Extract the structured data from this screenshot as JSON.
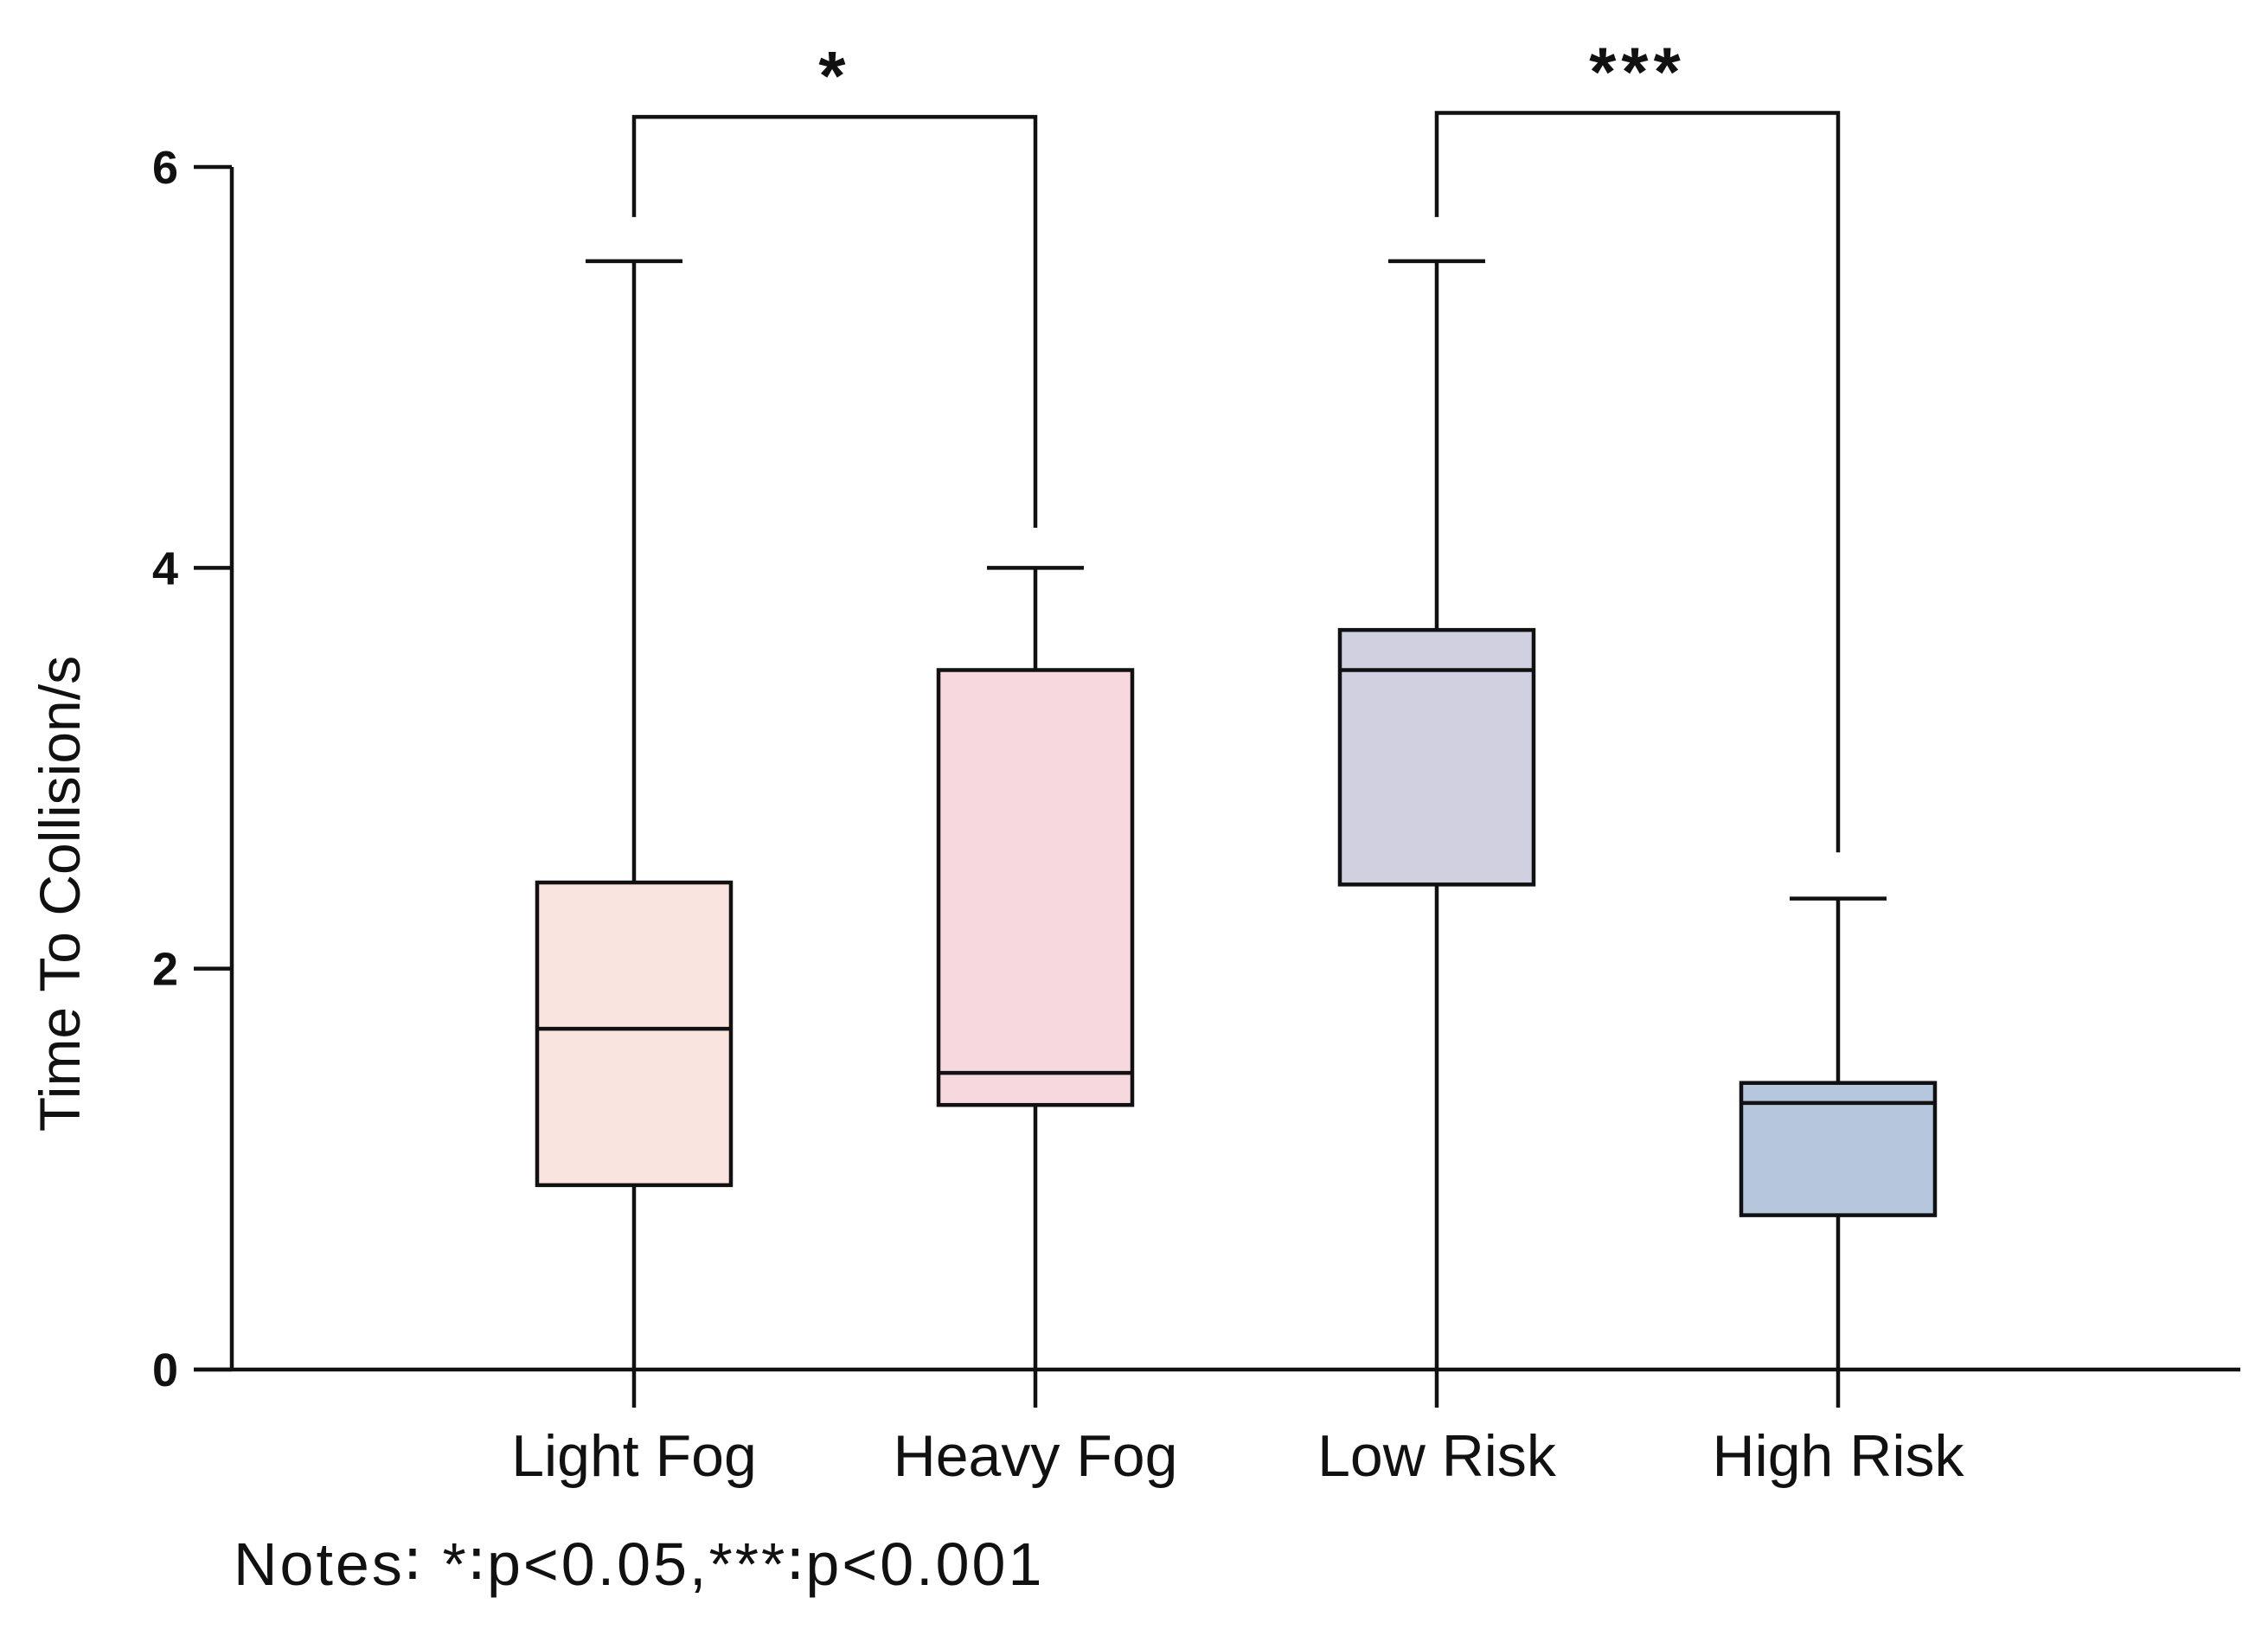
{
  "chart_data": {
    "type": "box",
    "title": "",
    "xlabel": "",
    "ylabel": "Time To Collision/s",
    "ylim": [
      0,
      6
    ],
    "yticks": [
      0,
      2,
      4,
      6
    ],
    "grid": false,
    "categories": [
      "Light Fog",
      "Heavy Fog",
      "Low Risk",
      "High Risk"
    ],
    "boxes": [
      {
        "name": "Light Fog",
        "min": 0,
        "q1": 0.92,
        "median": 1.7,
        "q3": 2.43,
        "max": 5.53,
        "color": "#f9e4df"
      },
      {
        "name": "Heavy Fog",
        "min": 0,
        "q1": 1.32,
        "median": 1.48,
        "q3": 3.49,
        "max": 4.0,
        "color": "#f7d8de"
      },
      {
        "name": "Low Risk",
        "min": 0,
        "q1": 2.42,
        "median": 3.49,
        "q3": 3.69,
        "max": 5.53,
        "color": "#d0d0e0"
      },
      {
        "name": "High Risk",
        "min": 0,
        "q1": 0.77,
        "median": 1.33,
        "q3": 1.43,
        "max": 2.35,
        "color": "#b6c6dd"
      }
    ],
    "significance": [
      {
        "from": "Light Fog",
        "to": "Heavy Fog",
        "label": "*",
        "y": 6.25,
        "left_drop": 5.75,
        "right_drop": 4.2
      },
      {
        "from": "Low Risk",
        "to": "High Risk",
        "label": "***",
        "y": 6.27,
        "left_drop": 5.75,
        "right_drop": 2.58
      }
    ]
  },
  "notes": "Notes∶ *∶p<0.05,***∶p<0.001"
}
